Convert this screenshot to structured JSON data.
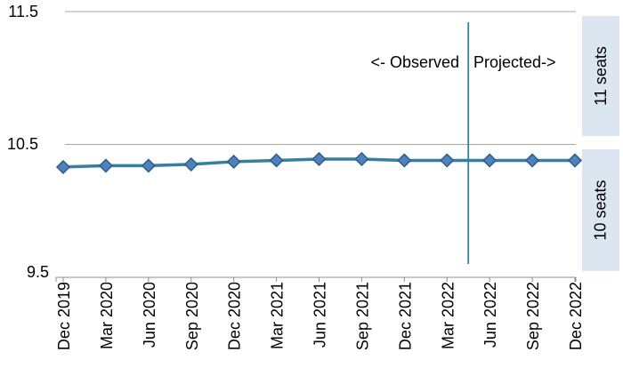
{
  "chart_data": {
    "type": "line",
    "title": "",
    "xlabel": "",
    "ylabel": "",
    "categories": [
      "Dec 2019",
      "Mar 2020",
      "Jun 2020",
      "Sep 2020",
      "Dec 2020",
      "Mar 2021",
      "Jun 2021",
      "Sep 2021",
      "Dec 2021",
      "Mar 2022",
      "Jun 2022",
      "Sep 2022",
      "Dec 2022"
    ],
    "values": [
      10.33,
      10.34,
      10.34,
      10.35,
      10.37,
      10.38,
      10.39,
      10.39,
      10.38,
      10.38,
      10.38,
      10.38,
      10.38
    ],
    "ylim": [
      9.5,
      11.5
    ],
    "yticks": [
      11.5,
      10.5,
      9.5
    ],
    "ytick_labels": [
      "11.5",
      "10.5",
      "9.5"
    ],
    "grid": "horizontal-only",
    "legend": "none",
    "marker": "diamond",
    "annotations": {
      "observed_label": "<- Observed",
      "projected_label": "Projected->",
      "divider_between": [
        "Mar 2022",
        "Jun 2022"
      ]
    },
    "right_bands": [
      {
        "label": "11 seats",
        "from": 10.5,
        "to": 11.5
      },
      {
        "label": "10 seats",
        "from": 9.5,
        "to": 10.5
      }
    ],
    "colors": {
      "line": "#35809B",
      "marker_fill": "#4F81BD",
      "marker_stroke": "#2E5F8A",
      "divider": "#31849B",
      "band_bg": "#DCE6F1",
      "gridline": "#A6A6A6",
      "axis": "#8C8C8C",
      "text": "#000000"
    }
  }
}
